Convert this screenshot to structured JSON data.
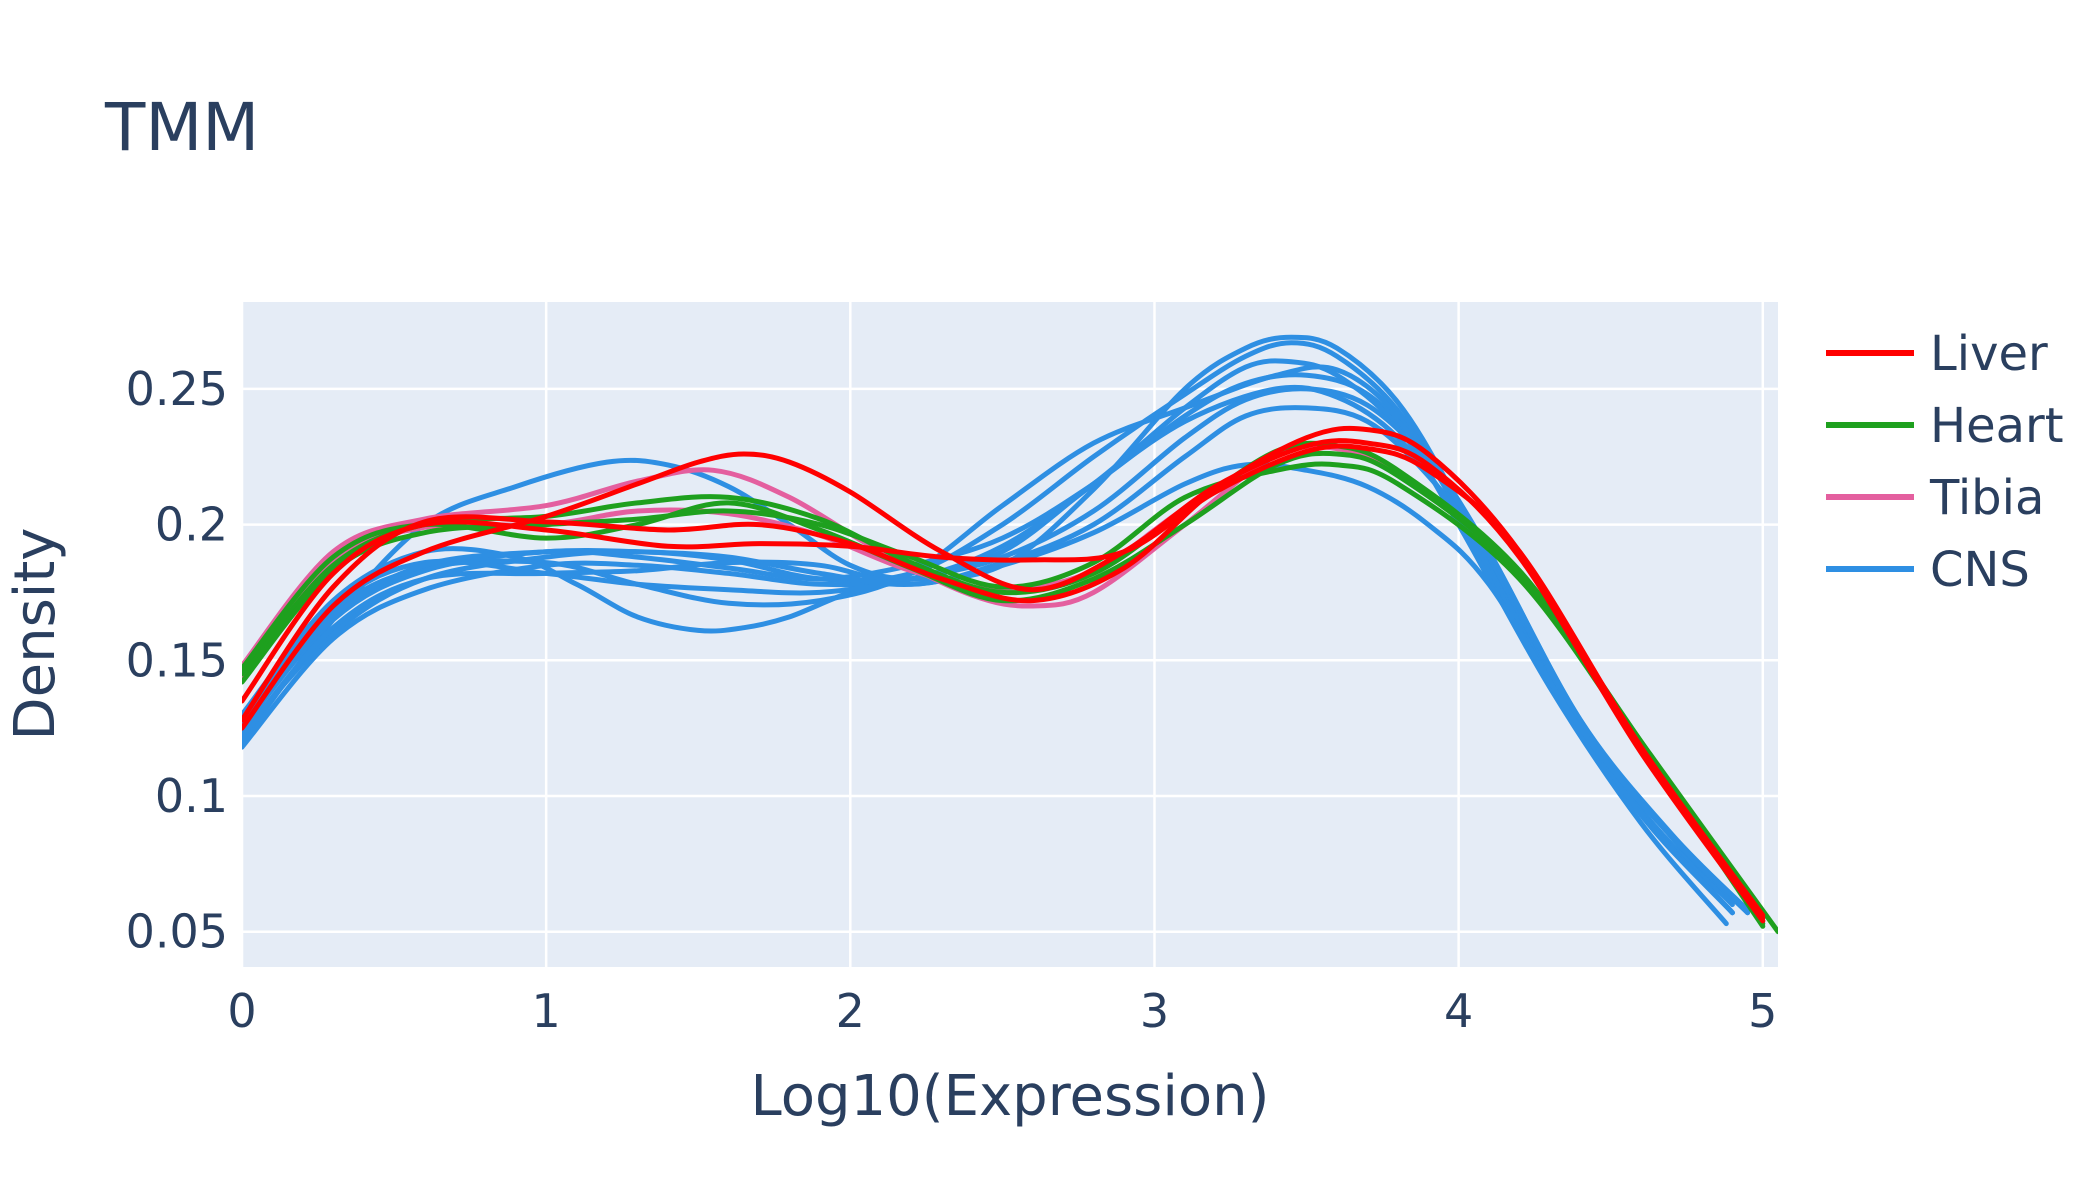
{
  "chart_data": {
    "type": "line",
    "title": "TMM",
    "xlabel": "Log10(Expression)",
    "ylabel": "Density",
    "xlim": [
      0,
      5.05
    ],
    "ylim": [
      0.037,
      0.282
    ],
    "xticks": [
      0,
      1,
      2,
      3,
      4,
      5
    ],
    "xtick_labels": [
      "0",
      "1",
      "2",
      "3",
      "4",
      "5"
    ],
    "yticks": [
      0.05,
      0.1,
      0.15,
      0.2,
      0.25
    ],
    "ytick_labels": [
      "0.05",
      "0.1",
      "0.15",
      "0.2",
      "0.25"
    ],
    "grid": true,
    "legend_position": "right",
    "background_color": "#e5ecf6",
    "legend": [
      {
        "label": "Liver",
        "color": "#ff0000"
      },
      {
        "label": "Heart",
        "color": "#1ea01e"
      },
      {
        "label": "Tibia",
        "color": "#e45f9f"
      },
      {
        "label": "CNS",
        "color": "#2e8fe3"
      }
    ],
    "series": [
      {
        "group": "Liver",
        "color": "#ff0000",
        "x": [
          0,
          0.3,
          0.6,
          1.0,
          1.4,
          1.7,
          2.0,
          2.3,
          2.6,
          2.9,
          3.2,
          3.5,
          3.7,
          3.9,
          4.2,
          4.6,
          5.0
        ],
        "y": [
          0.128,
          0.177,
          0.201,
          0.201,
          0.198,
          0.2,
          0.193,
          0.18,
          0.172,
          0.184,
          0.213,
          0.232,
          0.235,
          0.226,
          0.19,
          0.118,
          0.055
        ]
      },
      {
        "group": "Liver",
        "color": "#ff0000",
        "x": [
          0,
          0.3,
          0.6,
          1.0,
          1.3,
          1.5,
          1.65,
          1.8,
          2.0,
          2.3,
          2.6,
          2.9,
          3.2,
          3.5,
          3.7,
          3.9,
          4.2,
          4.6,
          5.0
        ],
        "y": [
          0.125,
          0.17,
          0.19,
          0.203,
          0.215,
          0.223,
          0.226,
          0.223,
          0.212,
          0.19,
          0.176,
          0.19,
          0.214,
          0.229,
          0.23,
          0.222,
          0.188,
          0.116,
          0.054
        ]
      },
      {
        "group": "Liver",
        "color": "#ff0000",
        "x": [
          0,
          0.3,
          0.6,
          1.0,
          1.4,
          1.7,
          2.0,
          2.3,
          2.6,
          2.9,
          3.2,
          3.5,
          3.7,
          3.9,
          4.2,
          4.6,
          5.0
        ],
        "y": [
          0.135,
          0.182,
          0.2,
          0.198,
          0.192,
          0.193,
          0.192,
          0.188,
          0.187,
          0.19,
          0.212,
          0.227,
          0.228,
          0.22,
          0.19,
          0.118,
          0.056
        ]
      },
      {
        "group": "Heart",
        "color": "#1ea01e",
        "x": [
          0,
          0.3,
          0.6,
          1.0,
          1.3,
          1.6,
          1.9,
          2.2,
          2.5,
          2.8,
          3.1,
          3.4,
          3.6,
          3.8,
          4.2,
          4.6,
          5.05
        ],
        "y": [
          0.145,
          0.185,
          0.2,
          0.203,
          0.208,
          0.21,
          0.202,
          0.186,
          0.175,
          0.182,
          0.205,
          0.227,
          0.229,
          0.22,
          0.183,
          0.12,
          0.05
        ]
      },
      {
        "group": "Heart",
        "color": "#1ea01e",
        "x": [
          0,
          0.3,
          0.6,
          1.0,
          1.3,
          1.6,
          1.9,
          2.2,
          2.5,
          2.8,
          3.1,
          3.4,
          3.6,
          3.8,
          4.2,
          4.6,
          5.0
        ],
        "y": [
          0.142,
          0.183,
          0.197,
          0.2,
          0.202,
          0.205,
          0.2,
          0.188,
          0.177,
          0.186,
          0.21,
          0.22,
          0.222,
          0.215,
          0.18,
          0.118,
          0.052
        ]
      },
      {
        "group": "Heart",
        "color": "#1ea01e",
        "x": [
          0,
          0.3,
          0.6,
          1.0,
          1.3,
          1.6,
          1.9,
          2.2,
          2.5,
          2.8,
          3.1,
          3.4,
          3.6,
          3.8,
          4.2,
          4.6,
          5.0
        ],
        "y": [
          0.147,
          0.188,
          0.2,
          0.195,
          0.2,
          0.208,
          0.198,
          0.184,
          0.172,
          0.18,
          0.2,
          0.222,
          0.226,
          0.218,
          0.182,
          0.12,
          0.053
        ]
      },
      {
        "group": "Tibia",
        "color": "#e45f9f",
        "x": [
          0,
          0.3,
          0.6,
          1.0,
          1.3,
          1.55,
          1.8,
          2.1,
          2.4,
          2.6,
          2.8,
          3.1,
          3.4,
          3.6,
          3.8,
          4.2,
          4.6,
          5.0
        ],
        "y": [
          0.148,
          0.19,
          0.202,
          0.207,
          0.216,
          0.22,
          0.21,
          0.19,
          0.174,
          0.17,
          0.175,
          0.2,
          0.226,
          0.229,
          0.219,
          0.182,
          0.118,
          0.054
        ]
      },
      {
        "group": "Tibia",
        "color": "#e45f9f",
        "x": [
          0,
          0.3,
          0.6,
          1.0,
          1.3,
          1.6,
          1.9,
          2.2,
          2.5,
          2.8,
          3.1,
          3.4,
          3.6,
          3.8,
          4.2,
          4.6,
          5.0
        ],
        "y": [
          0.144,
          0.186,
          0.199,
          0.2,
          0.205,
          0.204,
          0.196,
          0.183,
          0.176,
          0.183,
          0.206,
          0.226,
          0.228,
          0.219,
          0.182,
          0.119,
          0.054
        ]
      },
      {
        "group": "CNS",
        "color": "#2e8fe3",
        "x": [
          0,
          0.3,
          0.6,
          0.9,
          1.2,
          1.4,
          1.6,
          1.8,
          2.0,
          2.2,
          2.5,
          2.8,
          3.1,
          3.3,
          3.45,
          3.6,
          3.8,
          4.0,
          4.3,
          4.6,
          4.9
        ],
        "y": [
          0.12,
          0.165,
          0.2,
          0.214,
          0.223,
          0.222,
          0.214,
          0.2,
          0.185,
          0.18,
          0.185,
          0.213,
          0.25,
          0.265,
          0.269,
          0.265,
          0.245,
          0.208,
          0.145,
          0.095,
          0.06
        ]
      },
      {
        "group": "CNS",
        "color": "#2e8fe3",
        "x": [
          0,
          0.3,
          0.6,
          1.0,
          1.3,
          1.6,
          1.9,
          2.2,
          2.5,
          2.8,
          3.1,
          3.3,
          3.45,
          3.6,
          3.8,
          4.0,
          4.3,
          4.6,
          4.9
        ],
        "y": [
          0.123,
          0.16,
          0.18,
          0.188,
          0.19,
          0.187,
          0.18,
          0.182,
          0.2,
          0.225,
          0.248,
          0.262,
          0.267,
          0.262,
          0.242,
          0.205,
          0.143,
          0.094,
          0.057
        ]
      },
      {
        "group": "CNS",
        "color": "#2e8fe3",
        "x": [
          0,
          0.3,
          0.6,
          1.0,
          1.3,
          1.6,
          1.9,
          2.2,
          2.5,
          2.8,
          3.1,
          3.4,
          3.6,
          3.8,
          4.0,
          4.3,
          4.6,
          4.9
        ],
        "y": [
          0.128,
          0.168,
          0.184,
          0.186,
          0.178,
          0.171,
          0.172,
          0.182,
          0.207,
          0.23,
          0.243,
          0.255,
          0.257,
          0.24,
          0.205,
          0.143,
          0.094,
          0.057
        ]
      },
      {
        "group": "CNS",
        "color": "#2e8fe3",
        "x": [
          0,
          0.3,
          0.6,
          0.9,
          1.1,
          1.3,
          1.5,
          1.65,
          1.8,
          2.0,
          2.2,
          2.5,
          2.8,
          3.1,
          3.4,
          3.6,
          3.8,
          4.0,
          4.3,
          4.6,
          4.9
        ],
        "y": [
          0.13,
          0.172,
          0.19,
          0.188,
          0.178,
          0.166,
          0.161,
          0.162,
          0.166,
          0.175,
          0.18,
          0.19,
          0.215,
          0.238,
          0.25,
          0.247,
          0.232,
          0.202,
          0.142,
          0.093,
          0.057
        ]
      },
      {
        "group": "CNS",
        "color": "#2e8fe3",
        "x": [
          0,
          0.3,
          0.6,
          1.0,
          1.3,
          1.6,
          1.9,
          2.2,
          2.5,
          2.8,
          3.1,
          3.3,
          3.5,
          3.7,
          3.9,
          4.1,
          4.4,
          4.7,
          4.95
        ],
        "y": [
          0.125,
          0.165,
          0.183,
          0.19,
          0.188,
          0.184,
          0.18,
          0.185,
          0.195,
          0.215,
          0.24,
          0.252,
          0.255,
          0.248,
          0.225,
          0.19,
          0.128,
          0.085,
          0.057
        ]
      },
      {
        "group": "CNS",
        "color": "#2e8fe3",
        "x": [
          0,
          0.3,
          0.6,
          1.0,
          1.3,
          1.6,
          1.9,
          2.2,
          2.5,
          2.8,
          3.1,
          3.3,
          3.45,
          3.6,
          3.8,
          4.0,
          4.3,
          4.6,
          4.88
        ],
        "y": [
          0.118,
          0.158,
          0.176,
          0.185,
          0.185,
          0.182,
          0.178,
          0.18,
          0.192,
          0.215,
          0.243,
          0.258,
          0.26,
          0.255,
          0.236,
          0.2,
          0.14,
          0.09,
          0.053
        ]
      },
      {
        "group": "CNS",
        "color": "#2e8fe3",
        "x": [
          0,
          0.3,
          0.6,
          1.0,
          1.3,
          1.6,
          1.9,
          2.2,
          2.5,
          2.8,
          3.1,
          3.3,
          3.5,
          3.7,
          3.9,
          4.1,
          4.4,
          4.7,
          4.95
        ],
        "y": [
          0.122,
          0.162,
          0.18,
          0.182,
          0.183,
          0.186,
          0.185,
          0.178,
          0.186,
          0.2,
          0.225,
          0.24,
          0.243,
          0.238,
          0.218,
          0.188,
          0.127,
          0.085,
          0.057
        ]
      },
      {
        "group": "CNS",
        "color": "#2e8fe3",
        "x": [
          0,
          0.3,
          0.6,
          1.0,
          1.3,
          1.6,
          1.9,
          2.2,
          2.5,
          2.8,
          3.1,
          3.3,
          3.5,
          3.7,
          3.9,
          4.1,
          4.4,
          4.7,
          4.95
        ],
        "y": [
          0.13,
          0.17,
          0.186,
          0.182,
          0.178,
          0.176,
          0.175,
          0.18,
          0.188,
          0.205,
          0.232,
          0.246,
          0.25,
          0.244,
          0.223,
          0.19,
          0.128,
          0.086,
          0.058
        ]
      },
      {
        "group": "CNS",
        "color": "#2e8fe3",
        "x": [
          0,
          0.3,
          0.6,
          1.0,
          1.3,
          1.6,
          1.9,
          2.2,
          2.5,
          2.8,
          3.1,
          3.3,
          3.5,
          3.7,
          3.9,
          4.1,
          4.4,
          4.7,
          4.95
        ],
        "y": [
          0.127,
          0.166,
          0.185,
          0.19,
          0.19,
          0.188,
          0.182,
          0.178,
          0.185,
          0.197,
          0.215,
          0.222,
          0.22,
          0.214,
          0.2,
          0.178,
          0.125,
          0.085,
          0.058
        ]
      }
    ]
  }
}
